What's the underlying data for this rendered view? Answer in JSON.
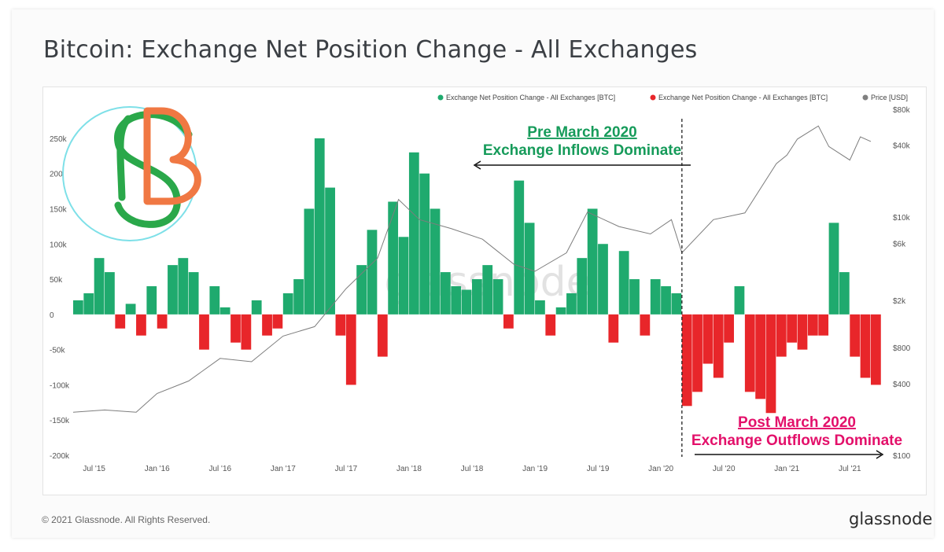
{
  "title": "Bitcoin: Exchange Net Position Change - All Exchanges",
  "footer": {
    "copyright": "© 2021 Glassnode. All Rights Reserved.",
    "brand": "glassnode"
  },
  "watermark": "glassnode",
  "logo_text": "SB",
  "colors": {
    "inflow": "#1faa6e",
    "outflow": "#e8262a",
    "price": "#808080",
    "annotation_green": "#169b5a",
    "annotation_red": "#e3106a"
  },
  "annotations": {
    "pre_title": "Pre March 2020",
    "pre_subtitle": "Exchange Inflows Dominate",
    "post_title": "Post March 2020",
    "post_subtitle": "Exchange Outflows Dominate"
  },
  "chart_data": {
    "type": "bar",
    "legend": {
      "position": "top-right",
      "entries": [
        {
          "label": "Exchange Net Position Change - All Exchanges [BTC]",
          "color": "#1faa6e"
        },
        {
          "label": "Exchange Net Position Change - All Exchanges [BTC]",
          "color": "#e8262a"
        },
        {
          "label": "Price [USD]",
          "color": "#808080"
        }
      ]
    },
    "x_ticks": [
      "Jul '15",
      "Jan '16",
      "Jul '16",
      "Jan '17",
      "Jul '17",
      "Jan '18",
      "Jul '18",
      "Jan '19",
      "Jul '19",
      "Jan '20",
      "Jul '20",
      "Jan '21",
      "Jul '21"
    ],
    "y_left_ticks": [
      "250k",
      "200k",
      "150k",
      "100k",
      "50k",
      "0",
      "-50k",
      "-100k",
      "-150k",
      "-200k"
    ],
    "y_left_values": [
      250000,
      200000,
      150000,
      100000,
      50000,
      0,
      -50000,
      -100000,
      -150000,
      -200000
    ],
    "y_right_ticks": [
      "$80k",
      "$40k",
      "$10k",
      "$6k",
      "$2k",
      "$800",
      "$400",
      "$100"
    ],
    "y_right_values": [
      80000,
      40000,
      10000,
      6000,
      2000,
      800,
      400,
      100
    ],
    "ylim_left": [
      -200000,
      280000
    ],
    "ylim_right": [
      100,
      80000
    ],
    "right_axis_scale": "log",
    "divider_date": "2020-03",
    "series": [
      {
        "name": "Exchange Net Position Change - All Exchanges [BTC]",
        "x": [
          "2015-05",
          "2015-06",
          "2015-07",
          "2015-08",
          "2015-09",
          "2015-10",
          "2015-11",
          "2015-12",
          "2016-01",
          "2016-02",
          "2016-03",
          "2016-04",
          "2016-05",
          "2016-06",
          "2016-07",
          "2016-08",
          "2016-09",
          "2016-10",
          "2016-11",
          "2016-12",
          "2017-01",
          "2017-02",
          "2017-03",
          "2017-04",
          "2017-05",
          "2017-06",
          "2017-07",
          "2017-08",
          "2017-09",
          "2017-10",
          "2017-11",
          "2017-12",
          "2018-01",
          "2018-02",
          "2018-03",
          "2018-04",
          "2018-05",
          "2018-06",
          "2018-07",
          "2018-08",
          "2018-09",
          "2018-10",
          "2018-11",
          "2018-12",
          "2019-01",
          "2019-02",
          "2019-03",
          "2019-04",
          "2019-05",
          "2019-06",
          "2019-07",
          "2019-08",
          "2019-09",
          "2019-10",
          "2019-11",
          "2019-12",
          "2020-01",
          "2020-02",
          "2020-03",
          "2020-04",
          "2020-05",
          "2020-06",
          "2020-07",
          "2020-08",
          "2020-09",
          "2020-10",
          "2020-11",
          "2020-12",
          "2021-01",
          "2021-02",
          "2021-03",
          "2021-04",
          "2021-05",
          "2021-06",
          "2021-07",
          "2021-08",
          "2021-09"
        ],
        "values": [
          20000,
          30000,
          80000,
          60000,
          -20000,
          15000,
          -30000,
          40000,
          -20000,
          70000,
          80000,
          60000,
          -50000,
          40000,
          10000,
          -40000,
          -50000,
          20000,
          -30000,
          -20000,
          30000,
          50000,
          150000,
          250000,
          180000,
          -30000,
          -100000,
          70000,
          120000,
          -60000,
          160000,
          110000,
          230000,
          200000,
          150000,
          60000,
          40000,
          35000,
          50000,
          70000,
          50000,
          -20000,
          190000,
          130000,
          20000,
          -30000,
          10000,
          30000,
          80000,
          150000,
          100000,
          -40000,
          90000,
          50000,
          -30000,
          50000,
          40000,
          30000,
          -130000,
          -110000,
          -70000,
          -90000,
          -40000,
          40000,
          -110000,
          -120000,
          -140000,
          -60000,
          -40000,
          -50000,
          -30000,
          -30000,
          130000,
          60000,
          -60000,
          -90000,
          -100000
        ]
      },
      {
        "name": "Price [USD]",
        "x": [
          "2015-05",
          "2015-08",
          "2015-11",
          "2016-01",
          "2016-04",
          "2016-07",
          "2016-10",
          "2017-01",
          "2017-04",
          "2017-07",
          "2017-10",
          "2017-12",
          "2018-02",
          "2018-05",
          "2018-08",
          "2018-11",
          "2019-01",
          "2019-04",
          "2019-06",
          "2019-09",
          "2019-12",
          "2020-02",
          "2020-03",
          "2020-06",
          "2020-09",
          "2020-12",
          "2021-01",
          "2021-02",
          "2021-04",
          "2021-05",
          "2021-07",
          "2021-08",
          "2021-09"
        ],
        "values": [
          230,
          240,
          230,
          330,
          420,
          650,
          610,
          1000,
          1200,
          2500,
          4500,
          14000,
          9500,
          8000,
          6500,
          4000,
          3500,
          5000,
          11000,
          8300,
          7200,
          9500,
          5000,
          9500,
          10800,
          28000,
          33000,
          45000,
          58000,
          39000,
          30000,
          47000,
          43000
        ]
      }
    ]
  }
}
